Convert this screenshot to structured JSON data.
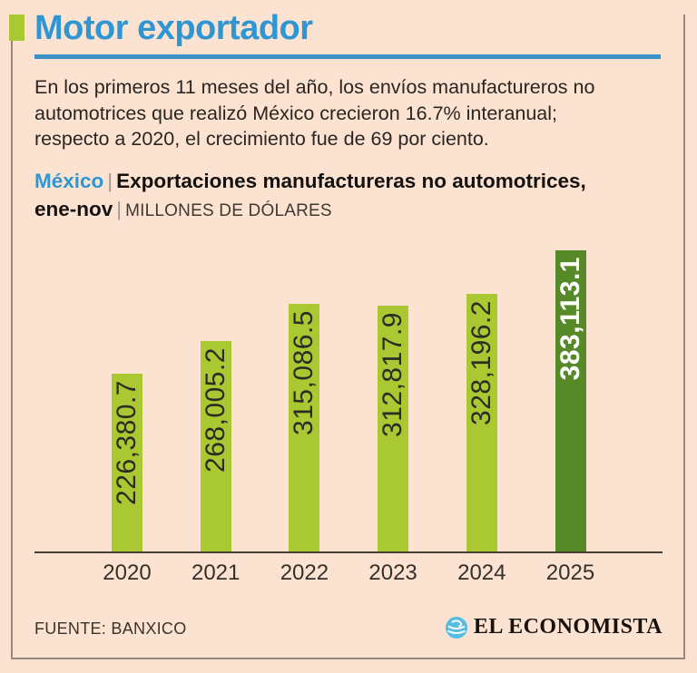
{
  "header": {
    "title": "Motor exportador"
  },
  "intro": {
    "lines": [
      "En los primeros 11 meses del año, los envíos manufactureros no",
      "automotrices que realizó México crecieron 16.7% interanual;",
      "respecto a 2020, el crecimiento fue de 69 por ciento."
    ]
  },
  "subtitle": {
    "region": "México",
    "separator": "|",
    "headline": "Exportaciones manufactureras no automotrices,",
    "period": "ene-nov",
    "units": "MILLONES DE DÓLARES"
  },
  "chart_data": {
    "type": "bar",
    "title": "Exportaciones manufactureras no automotrices, ene-nov",
    "units": "MILLONES DE DÓLARES",
    "categories": [
      "2020",
      "2021",
      "2022",
      "2023",
      "2024",
      "2025"
    ],
    "values": [
      226380.7,
      268005.2,
      315086.5,
      312817.9,
      328196.2,
      383113.1
    ],
    "value_labels": [
      "226,380.7",
      "268,005.2",
      "315,086.5",
      "312,817.9",
      "328,196.2",
      "383,113.1"
    ],
    "bar_color": "#a9c832",
    "highlight_color": "#568a28",
    "highlight_index": 5,
    "label_position": "inside-top-rotated",
    "grid": false,
    "ylim": [
      0,
      385000
    ]
  },
  "footer": {
    "source": "FUENTE: BANXICO",
    "brand": "EL ECONOMISTA",
    "logo": "globe-swirl-icon"
  },
  "colors": {
    "background": "#fce3d1",
    "accent_blue": "#2e96d2",
    "bar_green": "#a9c832",
    "highlight_green": "#568a28",
    "frame_border": "#96887c",
    "logo_blue": "#54bde4"
  }
}
